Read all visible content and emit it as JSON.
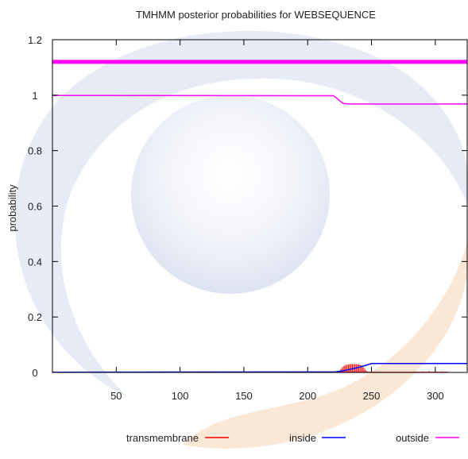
{
  "chart_data": {
    "type": "line",
    "title": "TMHMM posterior probabilities for WEBSEQUENCE",
    "xlabel": "",
    "ylabel": "probability",
    "xlim": [
      0,
      325
    ],
    "ylim": [
      0,
      1.2
    ],
    "xticks": [
      50,
      100,
      150,
      200,
      250,
      300
    ],
    "yticks": [
      0,
      0.2,
      0.4,
      0.6,
      0.8,
      1,
      1.2
    ],
    "ytick_labels": [
      "0",
      "0.2",
      "0.4",
      "0.6",
      "0.8",
      "1",
      "1.2"
    ],
    "grid": false,
    "legend_position": "bottom",
    "series": [
      {
        "name": "transmembrane",
        "kind": "impulses",
        "color": "#ff0000",
        "x": [
          225,
          226,
          227,
          228,
          229,
          230,
          231,
          232,
          233,
          234,
          235,
          236,
          237,
          238,
          239,
          240,
          241,
          242,
          243,
          244,
          245,
          246,
          247,
          248,
          285,
          290,
          295,
          300,
          305,
          310
        ],
        "values": [
          0.006,
          0.012,
          0.018,
          0.022,
          0.025,
          0.027,
          0.028,
          0.029,
          0.03,
          0.03,
          0.03,
          0.03,
          0.03,
          0.03,
          0.03,
          0.029,
          0.028,
          0.026,
          0.022,
          0.017,
          0.011,
          0.006,
          0.003,
          0.001,
          0.002,
          0.004,
          0.005,
          0.005,
          0.004,
          0.002
        ]
      },
      {
        "name": "inside",
        "kind": "line",
        "color": "#0000ff",
        "x": [
          0,
          222,
          228,
          238,
          246,
          250,
          325
        ],
        "values": [
          0.001,
          0.002,
          0.006,
          0.016,
          0.026,
          0.032,
          0.032
        ]
      },
      {
        "name": "outside",
        "kind": "line",
        "color": "#ff00ff",
        "x": [
          0,
          220,
          222,
          224,
          226,
          228,
          232,
          250,
          325
        ],
        "values": [
          0.999,
          0.998,
          0.992,
          0.984,
          0.976,
          0.97,
          0.968,
          0.968,
          0.968
        ]
      }
    ],
    "bands": [
      {
        "name": "outside",
        "color": "#ff00ff",
        "y": 1.12
      }
    ]
  }
}
